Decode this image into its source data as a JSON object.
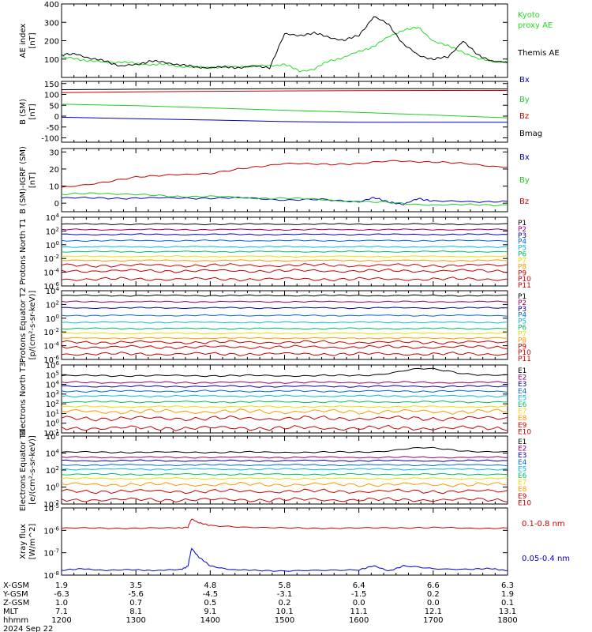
{
  "time_axis": {
    "ticks": [
      "1200",
      "1300",
      "1400",
      "1500",
      "1600",
      "1700",
      "1800"
    ]
  },
  "ephemeris": {
    "rows": [
      {
        "label": "X-GSM",
        "values": [
          "1.9",
          "3.5",
          "4.8",
          "5.8",
          "6.4",
          "6.6",
          "6.3"
        ]
      },
      {
        "label": "Y-GSM",
        "values": [
          "-6.3",
          "-5.6",
          "-4.5",
          "-3.1",
          "-1.5",
          "0.2",
          "1.9"
        ]
      },
      {
        "label": "Z-GSM",
        "values": [
          "1.0",
          "0.7",
          "0.5",
          "0.2",
          "0.0",
          "0.0",
          "0.1"
        ]
      },
      {
        "label": "MLT",
        "values": [
          "7.1",
          "8.1",
          "9.1",
          "10.1",
          "11.1",
          "12.1",
          "13.1"
        ]
      },
      {
        "label": "hhmm",
        "values": [
          "1200",
          "1300",
          "1400",
          "1500",
          "1600",
          "1700",
          "1800"
        ]
      }
    ],
    "date": "2024 Sep 22"
  },
  "chart_data": [
    {
      "type": "line",
      "ylabel": "AE index [nT]",
      "ylim": [
        0,
        400
      ],
      "log": false,
      "ytick_labels": [
        "100",
        "200",
        "300",
        "400"
      ],
      "series": [
        {
          "name": "Kyoto proxy AE",
          "color": "#22dd22",
          "x": [
            12.0,
            12.2,
            12.4,
            12.6,
            12.8,
            13.0,
            13.2,
            13.4,
            13.6,
            13.8,
            14.0,
            14.2,
            14.4,
            14.6,
            14.8,
            15.0,
            15.2,
            15.4,
            15.6,
            15.8,
            16.0,
            16.2,
            16.4,
            16.6,
            16.8,
            17.0,
            17.2,
            17.4,
            17.6,
            17.8,
            18.0
          ],
          "y": [
            110,
            100,
            90,
            80,
            85,
            75,
            70,
            70,
            60,
            55,
            55,
            55,
            60,
            60,
            65,
            70,
            35,
            45,
            90,
            110,
            140,
            170,
            220,
            260,
            270,
            200,
            170,
            140,
            100,
            90,
            80
          ]
        },
        {
          "name": "Themis AE",
          "color": "#000000",
          "x": [
            12.0,
            12.2,
            12.4,
            12.6,
            12.8,
            13.0,
            13.2,
            13.4,
            13.6,
            13.8,
            14.0,
            14.2,
            14.4,
            14.6,
            14.8,
            15.0,
            15.2,
            15.4,
            15.6,
            15.8,
            16.0,
            16.2,
            16.4,
            16.6,
            16.8,
            17.0,
            17.2,
            17.4,
            17.6,
            17.8,
            18.0
          ],
          "y": [
            120,
            130,
            100,
            90,
            60,
            70,
            90,
            80,
            70,
            55,
            55,
            55,
            55,
            60,
            55,
            235,
            230,
            240,
            220,
            200,
            230,
            330,
            290,
            180,
            120,
            100,
            110,
            200,
            120,
            90,
            80
          ]
        }
      ]
    },
    {
      "type": "line",
      "ylabel": "B (SM) [nT]",
      "ylim": [
        -120,
        160
      ],
      "log": false,
      "ytick_labels": [
        "150",
        "100",
        "50",
        "0",
        "-50",
        "-100"
      ],
      "series": [
        {
          "name": "Bx",
          "color": "#0000cc",
          "x": [
            12,
            13,
            14,
            15,
            16,
            17,
            18
          ],
          "y": [
            -5,
            -12,
            -18,
            -25,
            -28,
            -28,
            -28
          ]
        },
        {
          "name": "By",
          "color": "#22cc22",
          "x": [
            12,
            13,
            14,
            15,
            16,
            17,
            18
          ],
          "y": [
            55,
            48,
            38,
            27,
            17,
            5,
            -8
          ]
        },
        {
          "name": "Bz",
          "color": "#cc0000",
          "x": [
            12,
            13,
            14,
            15,
            16,
            17,
            18
          ],
          "y": [
            108,
            112,
            114,
            116,
            117,
            118,
            118
          ]
        },
        {
          "name": "Bmag",
          "color": "#000000",
          "x": [
            12,
            13,
            14,
            15,
            16,
            17,
            18
          ],
          "y": [
            122,
            124,
            125,
            126,
            126,
            126,
            125
          ]
        }
      ]
    },
    {
      "type": "line",
      "ylabel": "B (SM)-IGRF (SM) [nT]",
      "ylim": [
        -5,
        32
      ],
      "log": false,
      "ytick_labels": [
        "30",
        "20",
        "10",
        "0"
      ],
      "series": [
        {
          "name": "Bx",
          "color": "#0000cc",
          "x": [
            12.0,
            12.5,
            13.0,
            13.5,
            14.0,
            14.5,
            15.0,
            15.5,
            16.0,
            16.2,
            16.4,
            16.6,
            16.8,
            17.0,
            17.5,
            18.0
          ],
          "y": [
            3,
            3,
            3,
            3,
            3,
            3,
            2,
            2,
            1,
            3,
            1,
            -1,
            3,
            1,
            1,
            1
          ]
        },
        {
          "name": "By",
          "color": "#22cc22",
          "x": [
            12.0,
            12.5,
            13.0,
            13.5,
            14.0,
            14.5,
            15.0,
            15.5,
            16.0,
            16.5,
            17.0,
            17.5,
            18.0
          ],
          "y": [
            5,
            6,
            5,
            4,
            4,
            3,
            3,
            2,
            1,
            0,
            -1,
            -1,
            -1
          ]
        },
        {
          "name": "Bz",
          "color": "#cc0000",
          "x": [
            12.0,
            12.5,
            13.0,
            13.5,
            14.0,
            14.5,
            15.0,
            15.5,
            16.0,
            16.5,
            17.0,
            17.5,
            18.0
          ],
          "y": [
            9,
            12,
            15,
            17,
            17,
            21,
            23,
            23,
            23,
            25,
            24,
            23,
            21
          ]
        }
      ]
    },
    {
      "type": "line",
      "ylabel": "Protons North T1",
      "log": true,
      "ylim_exp": [
        -6,
        4
      ],
      "ytick_labels": [
        "10^4",
        "10^2",
        "10^0",
        "10^-2",
        "10^-4",
        "10^-6"
      ],
      "series": [
        {
          "name": "P1",
          "color": "#000000",
          "log10_level": 3.0
        },
        {
          "name": "P2",
          "color": "#990066",
          "log10_level": 2.2
        },
        {
          "name": "P3",
          "color": "#0000aa",
          "log10_level": 1.5
        },
        {
          "name": "P4",
          "color": "#0066dd",
          "log10_level": 0.6
        },
        {
          "name": "P5",
          "color": "#00bbdd",
          "log10_level": -0.3
        },
        {
          "name": "P6",
          "color": "#00bb66",
          "log10_level": -1.0
        },
        {
          "name": "P7",
          "color": "#eedd00",
          "log10_level": -1.7
        },
        {
          "name": "P8",
          "color": "#ff9900",
          "log10_level": -2.3
        },
        {
          "name": "P9",
          "color": "#cc0000",
          "log10_level": -3.0
        },
        {
          "name": "P10",
          "color": "#cc0000",
          "log10_level": -3.8
        },
        {
          "name": "P11",
          "color": "#cc0000",
          "log10_level": -5.0
        }
      ]
    },
    {
      "type": "line",
      "ylabel": "Protons Equator T2 [p/(cm²-s-sr-keV)]",
      "log": true,
      "ylim_exp": [
        -6,
        4
      ],
      "ytick_labels": [
        "10^4",
        "10^2",
        "10^0",
        "10^-2",
        "10^-4",
        "10^-6"
      ],
      "series": [
        {
          "name": "P1",
          "color": "#000000",
          "log10_level": 3.3
        },
        {
          "name": "P2",
          "color": "#990066",
          "log10_level": 2.4
        },
        {
          "name": "P3",
          "color": "#0000aa",
          "log10_level": 1.5
        },
        {
          "name": "P4",
          "color": "#0066dd",
          "log10_level": 0.4
        },
        {
          "name": "P5",
          "color": "#00bbdd",
          "log10_level": -0.6
        },
        {
          "name": "P6",
          "color": "#00bb66",
          "log10_level": -1.5
        },
        {
          "name": "P7",
          "color": "#eedd00",
          "log10_level": -2.2
        },
        {
          "name": "P8",
          "color": "#ff9900",
          "log10_level": -2.9
        },
        {
          "name": "P9",
          "color": "#cc0000",
          "log10_level": -3.5
        },
        {
          "name": "P10",
          "color": "#cc0000",
          "log10_level": -4.2
        },
        {
          "name": "P11",
          "color": "#cc0000",
          "log10_level": -5.2
        }
      ]
    },
    {
      "type": "line",
      "ylabel": "Electrons North T3",
      "log": true,
      "ylim_exp": [
        -1,
        6
      ],
      "ytick_labels": [
        "10^6",
        "10^5",
        "10^4",
        "10^3",
        "10^2",
        "10^1",
        "10^0",
        "10^-1"
      ],
      "series": [
        {
          "name": "E1",
          "color": "#000000",
          "log10_level": 4.9,
          "bump": 0.7
        },
        {
          "name": "E2",
          "color": "#990066",
          "log10_level": 4.2
        },
        {
          "name": "E3",
          "color": "#0000aa",
          "log10_level": 3.8
        },
        {
          "name": "E4",
          "color": "#0066dd",
          "log10_level": 3.3
        },
        {
          "name": "E5",
          "color": "#00bbdd",
          "log10_level": 2.8
        },
        {
          "name": "E6",
          "color": "#00bb66",
          "log10_level": 2.2
        },
        {
          "name": "E7",
          "color": "#eedd00",
          "log10_level": 1.7
        },
        {
          "name": "E8",
          "color": "#ff9900",
          "log10_level": 1.2
        },
        {
          "name": "E9",
          "color": "#cc0000",
          "log10_level": 0.5
        },
        {
          "name": "E10",
          "color": "#cc0000",
          "log10_level": -0.5
        }
      ]
    },
    {
      "type": "line",
      "ylabel": "Electrons Equator T4 [e/(cm²-s-sr-keV)]",
      "log": true,
      "ylim_exp": [
        -2,
        6
      ],
      "ytick_labels": [
        "10^6",
        "10^4",
        "10^2",
        "10^0",
        "10^-2"
      ],
      "series": [
        {
          "name": "E1",
          "color": "#000000",
          "log10_level": 4.1,
          "bump": 0.5
        },
        {
          "name": "E2",
          "color": "#990066",
          "log10_level": 3.5
        },
        {
          "name": "E3",
          "color": "#0000aa",
          "log10_level": 3.1
        },
        {
          "name": "E4",
          "color": "#0066dd",
          "log10_level": 2.6
        },
        {
          "name": "E5",
          "color": "#00bbdd",
          "log10_level": 2.1
        },
        {
          "name": "E6",
          "color": "#00bb66",
          "log10_level": 1.5
        },
        {
          "name": "E7",
          "color": "#eedd00",
          "log10_level": 1.0
        },
        {
          "name": "E8",
          "color": "#ff9900",
          "log10_level": 0.3
        },
        {
          "name": "E9",
          "color": "#cc0000",
          "log10_level": -0.5
        },
        {
          "name": "E10",
          "color": "#cc0000",
          "log10_level": -1.5
        }
      ]
    },
    {
      "type": "line",
      "ylabel": "Xray flux [W/m^2]",
      "log": true,
      "ylim_exp": [
        -8,
        -5
      ],
      "ytick_labels": [
        "10^-5",
        "10^-6",
        "10^-7",
        "10^-8"
      ],
      "series": [
        {
          "name": "0.1-0.8 nm",
          "color": "#cc0000",
          "x": [
            12.0,
            12.5,
            13.0,
            13.5,
            13.7,
            13.75,
            13.85,
            14.0,
            14.5,
            15.0,
            15.5,
            16.0,
            16.5,
            17.0,
            17.5,
            18.0
          ],
          "y": [
            -5.9,
            -5.9,
            -5.9,
            -5.9,
            -5.85,
            -5.5,
            -5.65,
            -5.8,
            -5.85,
            -5.9,
            -5.9,
            -5.9,
            -5.88,
            -5.88,
            -5.9,
            -5.9
          ]
        },
        {
          "name": "0.05-0.4 nm",
          "color": "#0000cc",
          "x": [
            12.0,
            12.3,
            12.6,
            13.0,
            13.3,
            13.6,
            13.7,
            13.75,
            13.85,
            14.0,
            14.3,
            14.6,
            15.0,
            15.5,
            16.0,
            16.2,
            16.4,
            16.6,
            17.0,
            17.5,
            17.8,
            18.0
          ],
          "y": [
            -7.8,
            -7.7,
            -7.8,
            -7.75,
            -7.8,
            -7.75,
            -7.6,
            -6.8,
            -7.2,
            -7.6,
            -7.75,
            -7.8,
            -7.8,
            -7.8,
            -7.75,
            -7.6,
            -7.8,
            -7.6,
            -7.7,
            -7.75,
            -7.7,
            -7.8
          ]
        }
      ]
    }
  ]
}
